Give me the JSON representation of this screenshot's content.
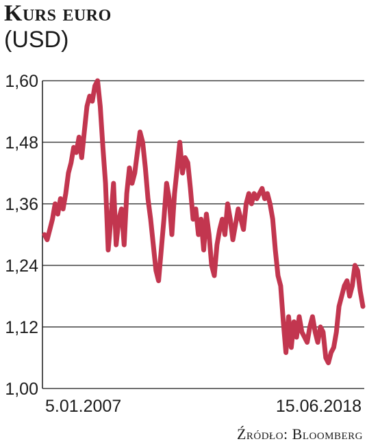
{
  "title": "Kurs euro",
  "subtitle": "(USD)",
  "source": "Źródło: Bloomberg",
  "colors": {
    "line": "#c2364f",
    "grid": "#1a1a1a",
    "text": "#1a1a1a"
  },
  "chart_data": {
    "type": "line",
    "title": "Kurs euro",
    "ylabel": "",
    "xlabel": "",
    "ylim": [
      1.0,
      1.6
    ],
    "yticks": [
      "1,60",
      "1,48",
      "1,36",
      "1,24",
      "1,12",
      "1,00"
    ],
    "ytick_values": [
      1.6,
      1.48,
      1.36,
      1.24,
      1.12,
      1.0
    ],
    "x_labels": [
      "5.01.2007",
      "15.06.2018"
    ],
    "grid": true,
    "series": [
      {
        "name": "",
        "x_start": "2007-01-05",
        "x_end": "2018-06-15",
        "values": [
          1.3,
          1.29,
          1.31,
          1.33,
          1.36,
          1.34,
          1.37,
          1.35,
          1.38,
          1.42,
          1.44,
          1.47,
          1.46,
          1.49,
          1.45,
          1.5,
          1.55,
          1.57,
          1.56,
          1.59,
          1.6,
          1.55,
          1.47,
          1.4,
          1.27,
          1.33,
          1.4,
          1.28,
          1.33,
          1.35,
          1.28,
          1.38,
          1.43,
          1.4,
          1.42,
          1.46,
          1.5,
          1.48,
          1.43,
          1.37,
          1.33,
          1.28,
          1.23,
          1.21,
          1.27,
          1.33,
          1.4,
          1.37,
          1.3,
          1.38,
          1.43,
          1.48,
          1.42,
          1.45,
          1.44,
          1.39,
          1.33,
          1.35,
          1.3,
          1.33,
          1.27,
          1.34,
          1.3,
          1.24,
          1.22,
          1.28,
          1.31,
          1.33,
          1.3,
          1.36,
          1.33,
          1.29,
          1.32,
          1.35,
          1.33,
          1.31,
          1.36,
          1.38,
          1.36,
          1.38,
          1.37,
          1.38,
          1.39,
          1.37,
          1.38,
          1.36,
          1.33,
          1.27,
          1.22,
          1.2,
          1.13,
          1.07,
          1.14,
          1.08,
          1.13,
          1.1,
          1.14,
          1.11,
          1.1,
          1.09,
          1.12,
          1.14,
          1.11,
          1.09,
          1.12,
          1.11,
          1.06,
          1.05,
          1.07,
          1.08,
          1.11,
          1.16,
          1.18,
          1.2,
          1.21,
          1.18,
          1.2,
          1.24,
          1.23,
          1.19,
          1.16
        ]
      }
    ]
  }
}
